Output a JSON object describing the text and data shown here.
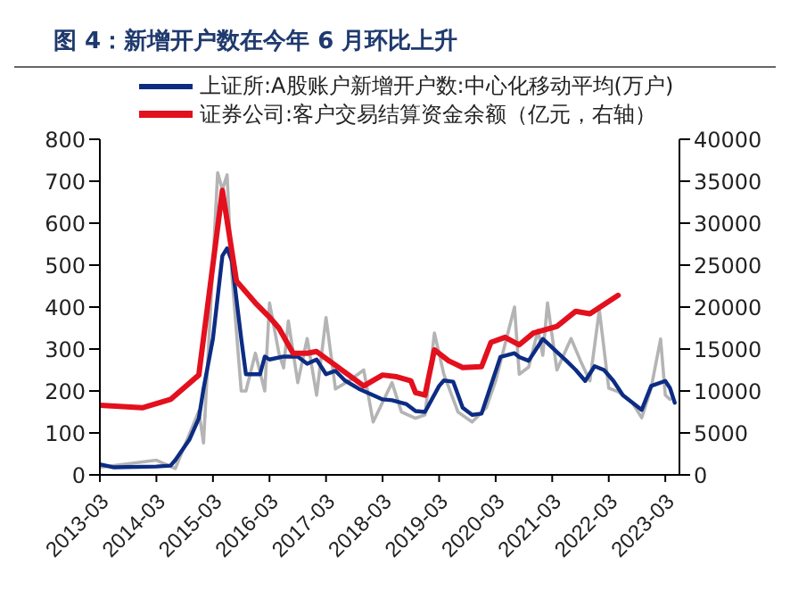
{
  "chart_data": {
    "type": "line",
    "title": "图 4：新增开户数在今年 6 月环比上升",
    "xlim": [
      "2013-03",
      "2023-06"
    ],
    "xticks": [
      "2013-03",
      "2014-03",
      "2015-03",
      "2016-03",
      "2017-03",
      "2018-03",
      "2019-03",
      "2020-03",
      "2021-03",
      "2022-03",
      "2023-03"
    ],
    "ylim": [
      0,
      800
    ],
    "yticks": [
      0,
      100,
      200,
      300,
      400,
      500,
      600,
      700,
      800
    ],
    "y2lim": [
      0,
      40000
    ],
    "y2ticks": [
      0,
      5000,
      10000,
      15000,
      20000,
      25000,
      30000,
      35000,
      40000
    ],
    "grid": false,
    "legend": "top",
    "marker": "none",
    "line_style": "solid",
    "series": [
      {
        "color": "#b4b4b4",
        "x": [
          "2013-03",
          "2014-03",
          "2014-07",
          "2014-12",
          "2015-01",
          "2015-04",
          "2015-05",
          "2015-06",
          "2015-07",
          "2015-09",
          "2015-10",
          "2015-12",
          "2016-02",
          "2016-03",
          "2016-05",
          "2016-06",
          "2016-07",
          "2016-09",
          "2016-11",
          "2017-01",
          "2017-03",
          "2017-05",
          "2017-08",
          "2017-11",
          "2018-01",
          "2018-05",
          "2018-07",
          "2018-10",
          "2018-12",
          "2019-02",
          "2019-04",
          "2019-07",
          "2019-10",
          "2020-01",
          "2020-03",
          "2020-07",
          "2020-08",
          "2020-10",
          "2020-12",
          "2021-01",
          "2021-02",
          "2021-04",
          "2021-06",
          "2021-07",
          "2021-09",
          "2021-11",
          "2022-01",
          "2022-03",
          "2022-05",
          "2022-08",
          "2022-10",
          "2022-12",
          "2023-02",
          "2023-03",
          "2023-04"
        ],
        "values": [
          18,
          35,
          15,
          152,
          76,
          720,
          680,
          715,
          480,
          200,
          200,
          290,
          200,
          410,
          290,
          255,
          367,
          220,
          325,
          190,
          375,
          205,
          225,
          250,
          126,
          220,
          150,
          135,
          143,
          338,
          240,
          150,
          126,
          160,
          224,
          400,
          240,
          257,
          345,
          285,
          410,
          250,
          300,
          325,
          272,
          224,
          393,
          207,
          198,
          172,
          136,
          207,
          324,
          190,
          180
        ]
      },
      {
        "name": "上证所:A股账户新增开户数:中心化移动平均(万户)",
        "color": "#0c2c84",
        "x": [
          "2013-03",
          "2013-06",
          "2014-03",
          "2014-06",
          "2014-07",
          "2014-10",
          "2014-12",
          "2015-01",
          "2015-03",
          "2015-05",
          "2015-06",
          "2015-07",
          "2015-09",
          "2015-10",
          "2016-01",
          "2016-02",
          "2016-03",
          "2016-06",
          "2016-09",
          "2016-11",
          "2017-01",
          "2017-03",
          "2017-05",
          "2017-07",
          "2017-10",
          "2018-01",
          "2018-03",
          "2018-05",
          "2018-08",
          "2018-10",
          "2018-12",
          "2019-03",
          "2019-04",
          "2019-06",
          "2019-08",
          "2019-10",
          "2019-12",
          "2020-04",
          "2020-07",
          "2020-08",
          "2020-10",
          "2021-01",
          "2021-02",
          "2021-04",
          "2021-06",
          "2021-08",
          "2021-10",
          "2021-12",
          "2022-02",
          "2022-04",
          "2022-06",
          "2022-10",
          "2022-12",
          "2023-03",
          "2023-04",
          "2023-05"
        ],
        "values": [
          25,
          18,
          20,
          22,
          35,
          84,
          135,
          205,
          325,
          522,
          540,
          510,
          325,
          240,
          240,
          282,
          275,
          282,
          282,
          265,
          275,
          240,
          248,
          225,
          205,
          190,
          180,
          178,
          169,
          152,
          150,
          212,
          225,
          222,
          160,
          143,
          146,
          281,
          290,
          281,
          272,
          324,
          314,
          293,
          272,
          250,
          224,
          259,
          250,
          224,
          190,
          155,
          212,
          224,
          207,
          172
        ]
      },
      {
        "axis": "y2",
        "name": "证券公司:客户交易结算资金余额（亿元，右轴）",
        "color": "#e3101e",
        "x": [
          "2013-03",
          "2013-12",
          "2014-06",
          "2014-12",
          "2015-05",
          "2015-08",
          "2015-12",
          "2016-03",
          "2016-05",
          "2016-08",
          "2016-11",
          "2017-01",
          "2017-11",
          "2018-03",
          "2018-06",
          "2018-09",
          "2018-10",
          "2018-12",
          "2019-02",
          "2019-05",
          "2019-08",
          "2019-12",
          "2020-02",
          "2020-05",
          "2020-08",
          "2020-11",
          "2021-04",
          "2021-08",
          "2021-11",
          "2022-05"
        ],
        "values": [
          8300,
          8000,
          9000,
          11900,
          33900,
          23100,
          20500,
          18800,
          17500,
          14500,
          14500,
          14700,
          10600,
          11900,
          11700,
          11200,
          9800,
          9500,
          14900,
          13600,
          12800,
          12900,
          15800,
          16400,
          15500,
          16900,
          17700,
          19500,
          19200,
          21400
        ]
      }
    ]
  }
}
